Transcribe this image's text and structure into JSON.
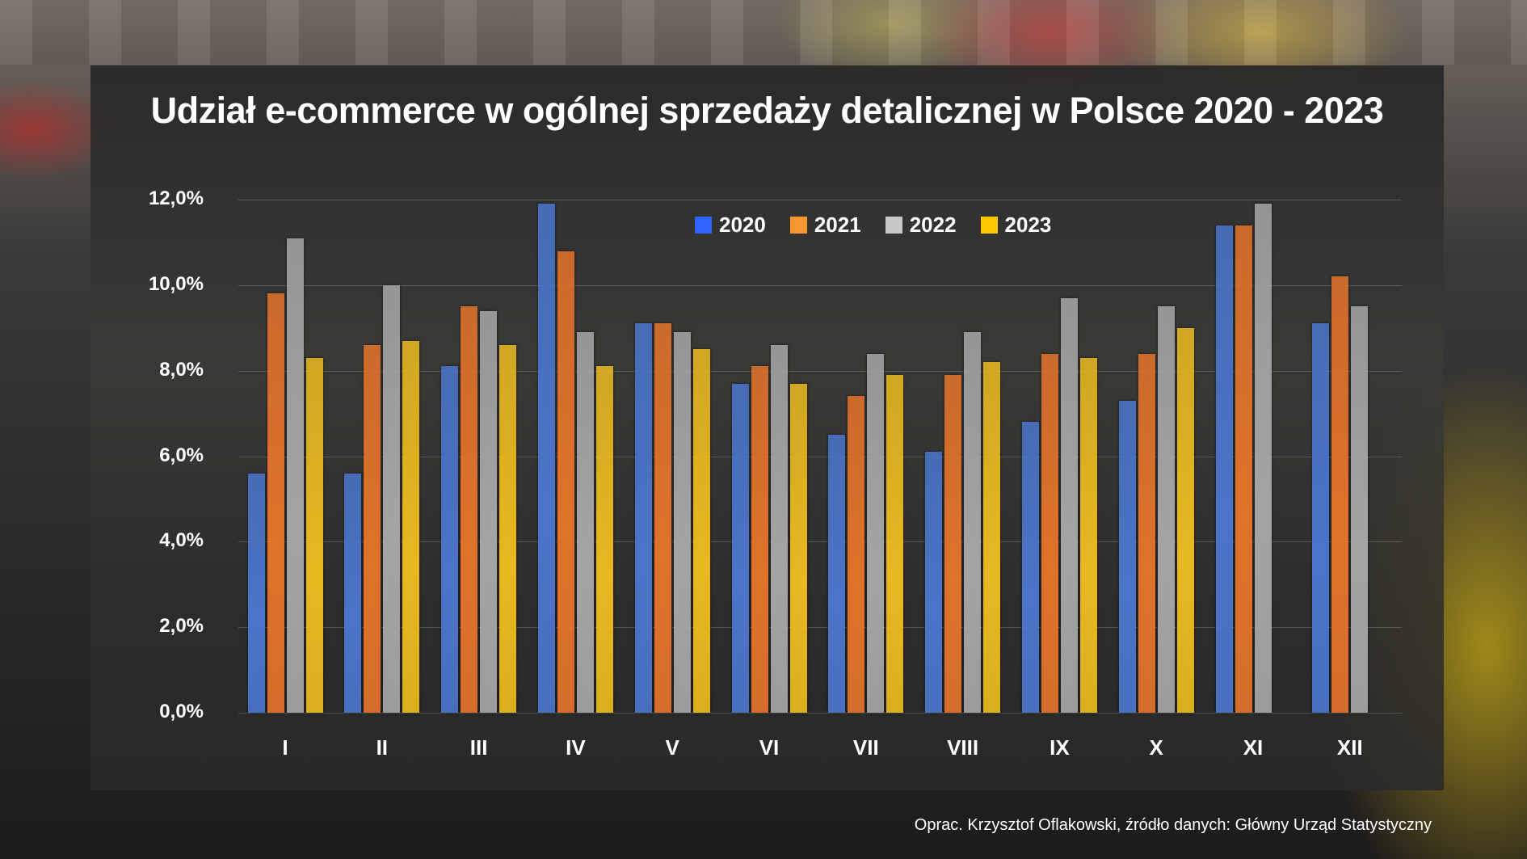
{
  "chart_data": {
    "type": "bar",
    "title": "Udział e-commerce w ogólnej sprzedaży detalicznej w Polsce 2020 - 2023",
    "xlabel": "",
    "ylabel": "",
    "ylim": [
      0,
      12
    ],
    "yticks": [
      "0,0%",
      "2,0%",
      "4,0%",
      "6,0%",
      "8,0%",
      "10,0%",
      "12,0%"
    ],
    "grid": true,
    "legend_position": "top-center",
    "categories": [
      "I",
      "II",
      "III",
      "IV",
      "V",
      "VI",
      "VII",
      "VIII",
      "IX",
      "X",
      "XI",
      "XII"
    ],
    "series": [
      {
        "name": "2020",
        "color": "#2F62FF",
        "values": [
          5.6,
          5.6,
          8.1,
          11.9,
          9.1,
          7.7,
          6.5,
          6.1,
          6.8,
          7.3,
          11.4,
          9.1
        ]
      },
      {
        "name": "2021",
        "color": "#F8962F",
        "values": [
          9.8,
          8.6,
          9.5,
          10.8,
          9.1,
          8.1,
          7.4,
          7.9,
          8.4,
          8.4,
          11.4,
          10.2
        ]
      },
      {
        "name": "2022",
        "color": "#C8C8C8",
        "values": [
          11.1,
          10.0,
          9.4,
          8.9,
          8.9,
          8.6,
          8.4,
          8.9,
          9.7,
          9.5,
          11.9,
          9.5
        ]
      },
      {
        "name": "2023",
        "color": "#FFC800",
        "values": [
          8.3,
          8.7,
          8.6,
          8.1,
          8.5,
          7.7,
          7.9,
          8.2,
          8.3,
          9.0,
          null,
          null
        ]
      }
    ]
  },
  "footer": {
    "credit": "Oprac. Krzysztof Oflakowski, źródło danych: Główny Urząd Statystyczny"
  },
  "bar_colors": {
    "2020": "#4a74c9",
    "2021": "#e0722a",
    "2022": "#a4a4a4",
    "2023": "#e8b820"
  }
}
